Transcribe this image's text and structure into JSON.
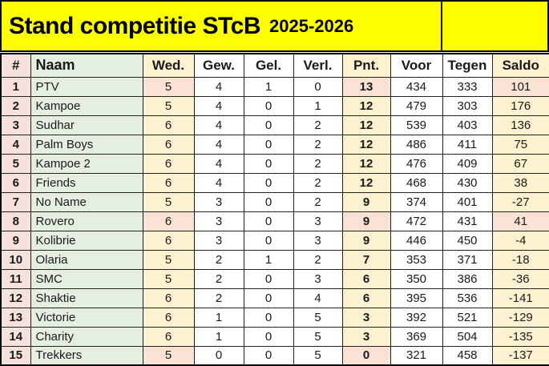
{
  "banner": {
    "title": "Stand competitie STcB",
    "season": "2025-2026",
    "background": "#ffff00"
  },
  "colors": {
    "banner_yellow": "#ffff00",
    "rank_pink": "#f6e2dc",
    "name_green": "#e5efe1",
    "cream": "#fdf2d0",
    "highlight_pink": "#fae2d4",
    "grid_border": "#222222",
    "text": "#1a1a1a"
  },
  "table": {
    "columns": [
      {
        "key": "rank",
        "label": "#"
      },
      {
        "key": "name",
        "label": "Naam"
      },
      {
        "key": "wed",
        "label": "Wed."
      },
      {
        "key": "gew",
        "label": "Gew."
      },
      {
        "key": "gel",
        "label": "Gel."
      },
      {
        "key": "verl",
        "label": "Verl."
      },
      {
        "key": "pnt",
        "label": "Pnt."
      },
      {
        "key": "voor",
        "label": "Voor"
      },
      {
        "key": "tegen",
        "label": "Tegen"
      },
      {
        "key": "saldo",
        "label": "Saldo"
      }
    ],
    "rows": [
      {
        "rank": "1",
        "name": "PTV",
        "wed": "5",
        "gew": "4",
        "gel": "1",
        "verl": "0",
        "pnt": "13",
        "voor": "434",
        "tegen": "333",
        "saldo": "101",
        "highlight": [
          "wed",
          "pnt",
          "saldo"
        ]
      },
      {
        "rank": "2",
        "name": "Kampoe",
        "wed": "5",
        "gew": "4",
        "gel": "0",
        "verl": "1",
        "pnt": "12",
        "voor": "479",
        "tegen": "303",
        "saldo": "176",
        "highlight": []
      },
      {
        "rank": "3",
        "name": "Sudhar",
        "wed": "6",
        "gew": "4",
        "gel": "0",
        "verl": "2",
        "pnt": "12",
        "voor": "539",
        "tegen": "403",
        "saldo": "136",
        "highlight": []
      },
      {
        "rank": "4",
        "name": "Palm Boys",
        "wed": "6",
        "gew": "4",
        "gel": "0",
        "verl": "2",
        "pnt": "12",
        "voor": "486",
        "tegen": "411",
        "saldo": "75",
        "highlight": []
      },
      {
        "rank": "5",
        "name": "Kampoe 2",
        "wed": "6",
        "gew": "4",
        "gel": "0",
        "verl": "2",
        "pnt": "12",
        "voor": "476",
        "tegen": "409",
        "saldo": "67",
        "highlight": []
      },
      {
        "rank": "6",
        "name": "Friends",
        "wed": "6",
        "gew": "4",
        "gel": "0",
        "verl": "2",
        "pnt": "12",
        "voor": "468",
        "tegen": "430",
        "saldo": "38",
        "highlight": []
      },
      {
        "rank": "7",
        "name": "No Name",
        "wed": "5",
        "gew": "3",
        "gel": "0",
        "verl": "2",
        "pnt": "9",
        "voor": "374",
        "tegen": "401",
        "saldo": "-27",
        "highlight": []
      },
      {
        "rank": "8",
        "name": "Rovero",
        "wed": "6",
        "gew": "3",
        "gel": "0",
        "verl": "3",
        "pnt": "9",
        "voor": "472",
        "tegen": "431",
        "saldo": "41",
        "highlight": [
          "wed",
          "pnt",
          "saldo"
        ]
      },
      {
        "rank": "9",
        "name": "Kolibrie",
        "wed": "6",
        "gew": "3",
        "gel": "0",
        "verl": "3",
        "pnt": "9",
        "voor": "446",
        "tegen": "450",
        "saldo": "-4",
        "highlight": []
      },
      {
        "rank": "10",
        "name": "Olaria",
        "wed": "5",
        "gew": "2",
        "gel": "1",
        "verl": "2",
        "pnt": "7",
        "voor": "353",
        "tegen": "371",
        "saldo": "-18",
        "highlight": []
      },
      {
        "rank": "11",
        "name": "SMC",
        "wed": "5",
        "gew": "2",
        "gel": "0",
        "verl": "3",
        "pnt": "6",
        "voor": "350",
        "tegen": "386",
        "saldo": "-36",
        "highlight": []
      },
      {
        "rank": "12",
        "name": "Shaktie",
        "wed": "6",
        "gew": "2",
        "gel": "0",
        "verl": "4",
        "pnt": "6",
        "voor": "395",
        "tegen": "536",
        "saldo": "-141",
        "highlight": []
      },
      {
        "rank": "13",
        "name": "Victorie",
        "wed": "6",
        "gew": "1",
        "gel": "0",
        "verl": "5",
        "pnt": "3",
        "voor": "392",
        "tegen": "521",
        "saldo": "-129",
        "highlight": []
      },
      {
        "rank": "14",
        "name": "Charity",
        "wed": "6",
        "gew": "1",
        "gel": "0",
        "verl": "5",
        "pnt": "3",
        "voor": "369",
        "tegen": "504",
        "saldo": "-135",
        "highlight": []
      },
      {
        "rank": "15",
        "name": "Trekkers",
        "wed": "5",
        "gew": "0",
        "gel": "0",
        "verl": "5",
        "pnt": "0",
        "voor": "321",
        "tegen": "458",
        "saldo": "-137",
        "highlight": [
          "wed",
          "pnt"
        ]
      }
    ]
  }
}
